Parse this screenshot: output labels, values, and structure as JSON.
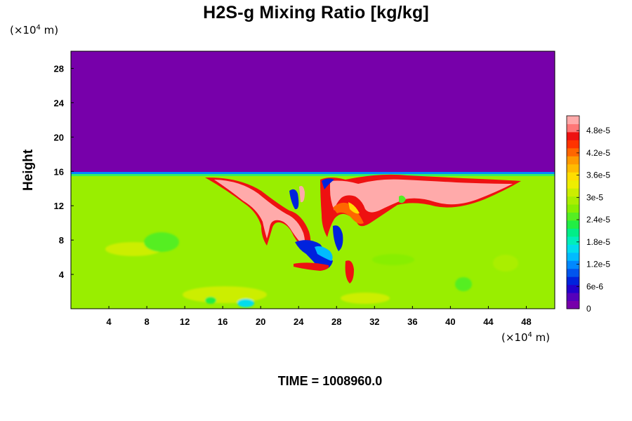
{
  "chart_data": {
    "type": "heatmap",
    "title": "H2S-g Mixing Ratio [kg/kg]",
    "ylabel": "Height",
    "y_unit": {
      "prefix": "(×10",
      "exp": "4",
      "suffix": " m)"
    },
    "x_unit": {
      "prefix": "(×10",
      "exp": "4",
      "suffix": " m)"
    },
    "xlim": [
      0,
      51
    ],
    "ylim": [
      0,
      30
    ],
    "x_ticks": [
      "4",
      "8",
      "12",
      "16",
      "20",
      "24",
      "28",
      "32",
      "36",
      "40",
      "44",
      "48"
    ],
    "y_ticks": [
      "4",
      "8",
      "12",
      "16",
      "20",
      "24",
      "28"
    ],
    "x_tick_values": [
      4,
      8,
      12,
      16,
      20,
      24,
      28,
      32,
      36,
      40,
      44,
      48
    ],
    "y_tick_values": [
      4,
      8,
      12,
      16,
      20,
      24,
      28
    ],
    "colorbar": {
      "min": 0,
      "max": 5.2e-05,
      "labels": [
        "0",
        "6e-6",
        "1.2e-5",
        "1.8e-5",
        "2.4e-5",
        "3e-5",
        "3.6e-5",
        "4.2e-5",
        "4.8e-5"
      ],
      "label_values": [
        0,
        6e-06,
        1.2e-05,
        1.8e-05,
        2.4e-05,
        3e-05,
        3.6e-05,
        4.2e-05,
        4.8e-05
      ],
      "colors": [
        "#7700aa",
        "#5500bb",
        "#2200cc",
        "#0022dd",
        "#0055ee",
        "#0088ff",
        "#00bbff",
        "#00ddee",
        "#00eebb",
        "#00ee88",
        "#22ee44",
        "#55ee22",
        "#88ee00",
        "#aaee00",
        "#ccee00",
        "#eeee00",
        "#ffdd00",
        "#ffbb00",
        "#ff9900",
        "#ff6600",
        "#ff3300",
        "#ee1111",
        "#ff7777",
        "#ffaaaa"
      ]
    },
    "field_description_values": {
      "upper_region_value": 0,
      "interface_height": 15.5,
      "lower_region_value": 3.3e-05,
      "plume_peak_value": 5e-05
    },
    "time_label": "TIME = 1008960.0"
  }
}
